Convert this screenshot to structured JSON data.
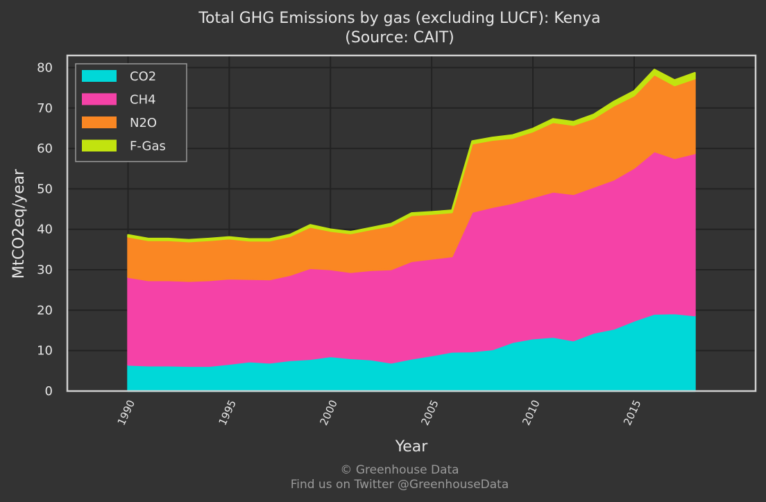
{
  "chart_data": {
    "type": "area",
    "stacked": true,
    "title": "Total GHG Emissions by gas (excluding LUCF): Kenya",
    "subtitle": "(Source: CAIT)",
    "xlabel": "Year",
    "ylabel": "MtCO2eq/year",
    "xlim": [
      1987,
      2021
    ],
    "ylim": [
      0,
      83
    ],
    "yticks": [
      0,
      10,
      20,
      30,
      40,
      50,
      60,
      70,
      80
    ],
    "xticks": [
      "1990",
      "1995",
      "2000",
      "2005",
      "2010",
      "2015"
    ],
    "grid": true,
    "legend_position": "top-left",
    "x": [
      1990,
      1991,
      1992,
      1993,
      1994,
      1995,
      1996,
      1997,
      1998,
      1999,
      2000,
      2001,
      2002,
      2003,
      2004,
      2005,
      2006,
      2007,
      2008,
      2009,
      2010,
      2011,
      2012,
      2013,
      2014,
      2015,
      2016,
      2017,
      2018
    ],
    "series": [
      {
        "name": "CO2",
        "color": "#00d8d8",
        "values": [
          6.5,
          6.3,
          6.3,
          6.2,
          6.2,
          6.7,
          7.3,
          7.0,
          7.6,
          7.9,
          8.6,
          8.1,
          7.8,
          7.0,
          8.0,
          8.8,
          9.7,
          9.8,
          10.3,
          12.1,
          13.0,
          13.4,
          12.5,
          14.4,
          15.4,
          17.4,
          19.1,
          19.2,
          18.7
        ]
      },
      {
        "name": "CH4",
        "color": "#f542a7",
        "values": [
          21.7,
          21.1,
          21.1,
          21.0,
          21.2,
          21.1,
          20.4,
          20.6,
          21.1,
          22.5,
          21.5,
          21.3,
          22.1,
          23.1,
          24.1,
          23.9,
          23.6,
          34.5,
          35.2,
          34.4,
          34.9,
          35.9,
          36.2,
          36.1,
          36.9,
          37.8,
          40.2,
          38.4,
          40.1
        ]
      },
      {
        "name": "N2O",
        "color": "#fa8723",
        "values": [
          10.0,
          9.9,
          9.9,
          9.8,
          9.9,
          9.9,
          9.5,
          9.6,
          9.6,
          10.2,
          9.5,
          9.6,
          10.1,
          10.8,
          11.4,
          11.1,
          10.9,
          16.9,
          16.6,
          16.1,
          16.3,
          17.2,
          17.1,
          17.0,
          18.3,
          17.9,
          19.0,
          18.0,
          18.5
        ]
      },
      {
        "name": "F-Gas",
        "color": "#c2e30f",
        "values": [
          0.4,
          0.4,
          0.4,
          0.4,
          0.4,
          0.4,
          0.4,
          0.4,
          0.4,
          0.5,
          0.4,
          0.4,
          0.4,
          0.5,
          0.5,
          0.5,
          0.5,
          0.6,
          0.6,
          0.7,
          0.7,
          0.8,
          0.8,
          0.9,
          1.0,
          1.1,
          1.2,
          1.3,
          1.4
        ]
      }
    ]
  },
  "credit": {
    "line1": "© Greenhouse Data",
    "line2": "Find us on Twitter @GreenhouseData"
  }
}
